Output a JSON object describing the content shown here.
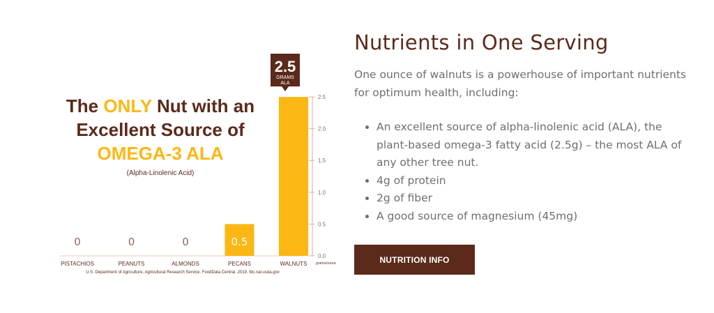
{
  "colors": {
    "brown": "#5b2a1a",
    "gold": "#fbb814",
    "gray": "#6e6e6e"
  },
  "infographic": {
    "headline_line1_pre": "The",
    "headline_line1_highlight": "ONLY",
    "headline_line1_post": "Nut with an",
    "headline_line2": "Excellent Source of",
    "headline_line3": "OMEGA-3 ALA",
    "subheadline": "(Alpha-Linolenic Acid)",
    "callout_value": "2.5",
    "callout_unit_line1": "GRAMS",
    "callout_unit_line2": "ALA",
    "source_note": "U.S. Department of Agriculture, Agricultural Research Service. FoodData Central, 2019. fdc.nal.usda.gov"
  },
  "chart_data": {
    "type": "bar",
    "categories": [
      "PISTACHIOS",
      "PEANUTS",
      "ALMONDS",
      "PECANS",
      "WALNUTS"
    ],
    "values": [
      0,
      0,
      0,
      0.5,
      2.5
    ],
    "value_labels": [
      "0",
      "0",
      "0",
      "0.5",
      ""
    ],
    "ylim": [
      0,
      2.5
    ],
    "yticks": [
      "0.0",
      "0.5",
      "1.0",
      "1.5",
      "2.0",
      "2.5"
    ],
    "ylabel": "grams/ounce",
    "grid": false,
    "legend": "none"
  },
  "content": {
    "title": "Nutrients in One Serving",
    "intro": "One ounce of walnuts is a powerhouse of important nutrients for optimum health, including:",
    "bullets": [
      "An excellent source of alpha-linolenic acid (ALA), the plant-based omega-3 fatty acid (2.5g) – the most ALA of any other tree nut.",
      "4g of protein",
      "2g of fiber",
      "A good source of magnesium (45mg)"
    ],
    "button_label": "NUTRITION INFO"
  }
}
